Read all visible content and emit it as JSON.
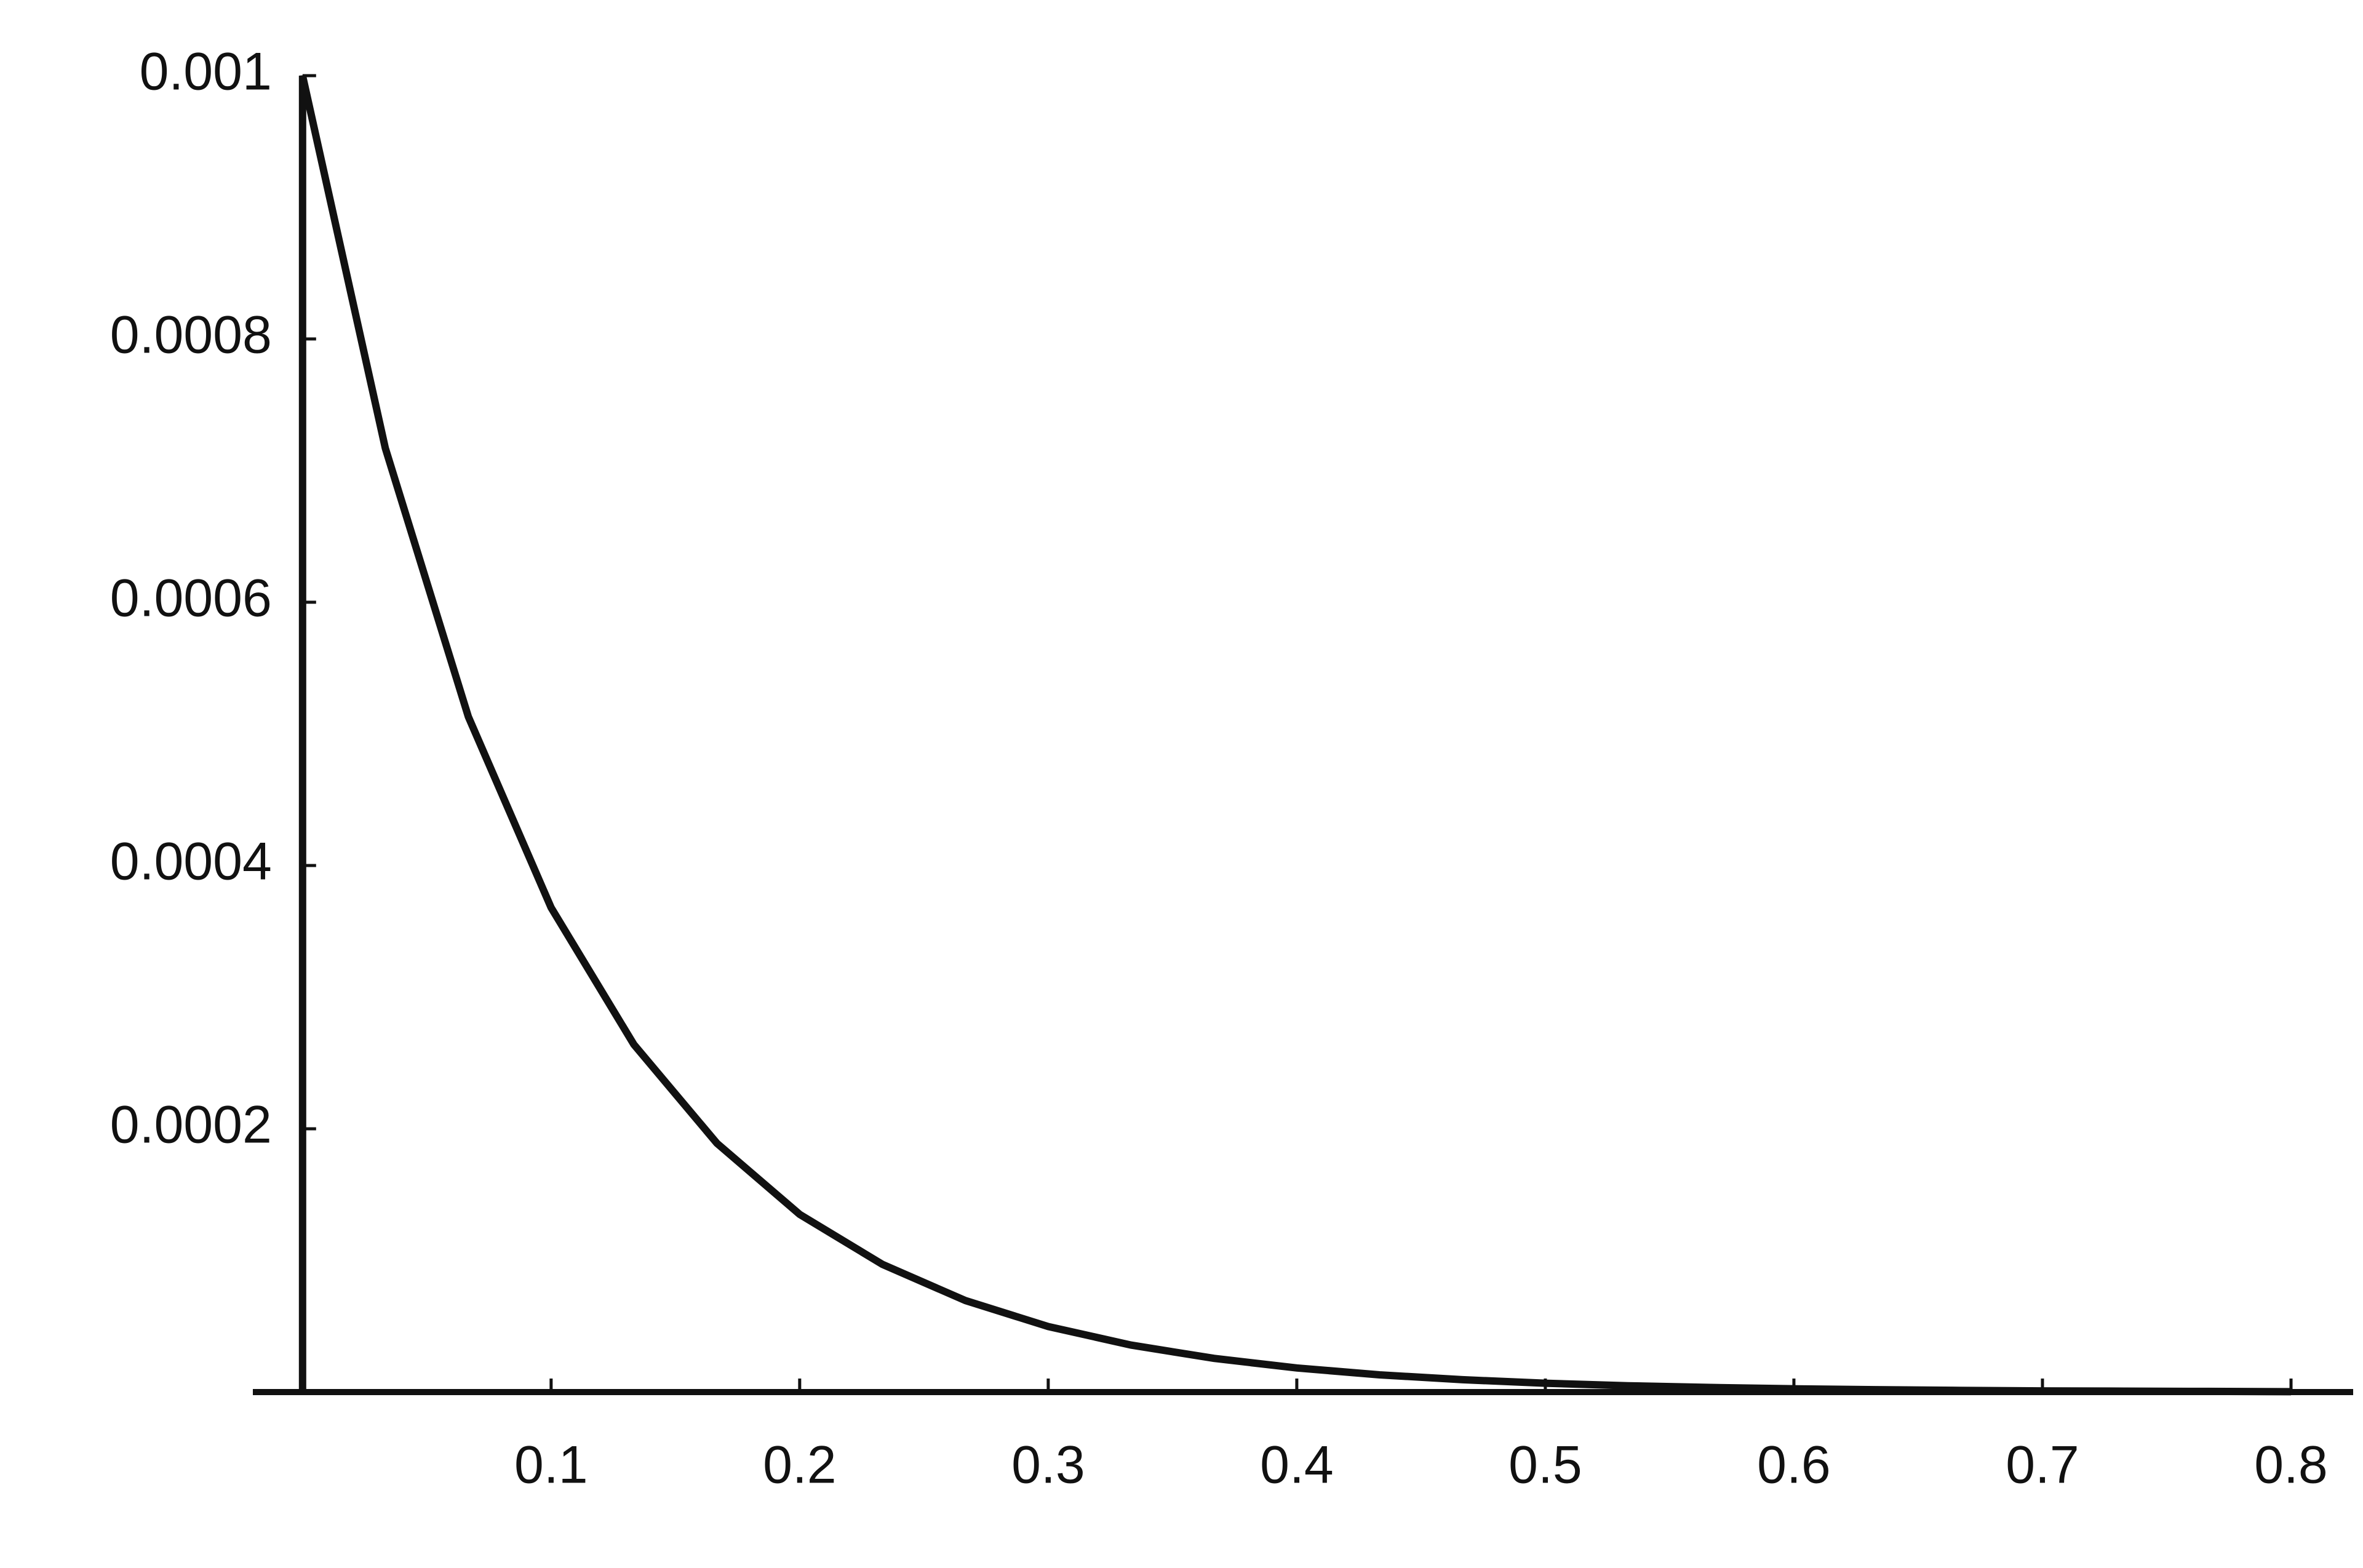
{
  "chart_data": {
    "type": "line",
    "x": [
      0,
      0,
      0.0333,
      0.0667,
      0.1,
      0.1333,
      0.1667,
      0.2,
      0.2333,
      0.2667,
      0.3,
      0.3333,
      0.3667,
      0.4,
      0.4333,
      0.4667,
      0.5,
      0.5333,
      0.5667,
      0.6,
      0.6333,
      0.6667,
      0.7,
      0.7333,
      0.7667,
      0.8
    ],
    "series": [
      {
        "color": "#111111",
        "values": [
          0,
          0.001,
          0.000717,
          0.000513,
          0.000368,
          0.000264,
          0.000189,
          0.000135,
          9.7e-05,
          6.95e-05,
          4.98e-05,
          3.57e-05,
          2.56e-05,
          1.83e-05,
          1.31e-05,
          9.4e-06,
          6.7e-06,
          4.8e-06,
          3.5e-06,
          2.5e-06,
          1.8e-06,
          1.3e-06,
          9e-07,
          7e-07,
          5e-07,
          3e-07
        ]
      }
    ],
    "xlim": [
      -0.02,
      0.825
    ],
    "ylim": [
      0,
      0.001
    ],
    "xticks": [
      0.1,
      0.2,
      0.3,
      0.4,
      0.5,
      0.6,
      0.7,
      0.8
    ],
    "yticks": [
      0.0002,
      0.0004,
      0.0006,
      0.0008,
      0.001
    ],
    "grid": false
  }
}
